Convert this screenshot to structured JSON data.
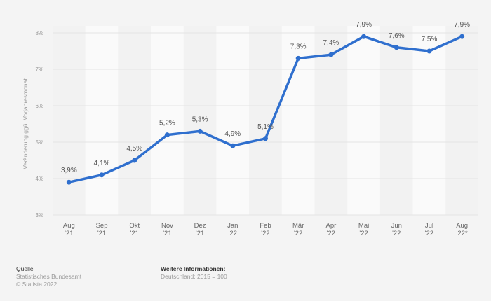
{
  "chart_data": {
    "type": "line",
    "title": "",
    "xlabel": "",
    "ylabel": "Veränderung ggü. Vorjahresmonat",
    "categories": [
      [
        "Aug",
        "'21"
      ],
      [
        "Sep",
        "'21"
      ],
      [
        "Okt",
        "'21"
      ],
      [
        "Nov",
        "'21"
      ],
      [
        "Dez",
        "'21"
      ],
      [
        "Jan",
        "'22"
      ],
      [
        "Feb",
        "'22"
      ],
      [
        "Mär",
        "'22"
      ],
      [
        "Apr",
        "'22"
      ],
      [
        "Mai",
        "'22"
      ],
      [
        "Jun",
        "'22"
      ],
      [
        "Jul",
        "'22"
      ],
      [
        "Aug",
        "'22*"
      ]
    ],
    "values": [
      3.9,
      4.1,
      4.5,
      5.2,
      5.3,
      4.9,
      5.1,
      7.3,
      7.4,
      7.9,
      7.6,
      7.5,
      7.9
    ],
    "data_labels": [
      "3,9%",
      "4,1%",
      "4,5%",
      "5,2%",
      "5,3%",
      "4,9%",
      "5,1%",
      "7,3%",
      "7,4%",
      "7,9%",
      "7,6%",
      "7,5%",
      "7,9%"
    ],
    "ylim": [
      3,
      8
    ],
    "yticks": [
      3,
      4,
      5,
      6,
      7,
      8
    ],
    "ytick_labels": [
      "3%",
      "4%",
      "5%",
      "6%",
      "7%",
      "8%"
    ],
    "grid": true,
    "line_color": "#2f6fce"
  },
  "footer": {
    "source_heading": "Quelle",
    "source": "Statistisches Bundesamt",
    "copyright": "© Statista 2022",
    "info_heading": "Weitere Informationen:",
    "info": "Deutschland; 2015 = 100"
  }
}
